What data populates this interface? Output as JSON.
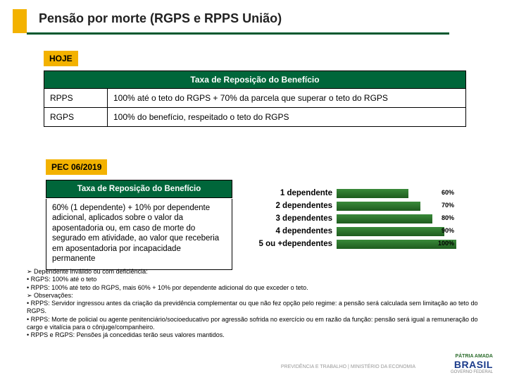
{
  "title": "Pensão por morte (RGPS e RPPS União)",
  "colors": {
    "accent_yellow": "#f3b200",
    "header_green": "#00663a",
    "underline_green": "#00582f",
    "bar_gradient_top": "#3a8a3a",
    "bar_gradient_bottom": "#1e5c1e",
    "text": "#222222",
    "background": "#ffffff"
  },
  "tag_hoje": "HOJE",
  "tag_pec": "PEC 06/2019",
  "table1": {
    "header": "Taxa de Reposição do Benefício",
    "rows": [
      {
        "c0": "RPPS",
        "c1": "100% até o teto do RGPS + 70% da parcela que superar o teto do RGPS"
      },
      {
        "c0": "RGPS",
        "c1": "100% do benefício, respeitado o teto do RGPS"
      }
    ]
  },
  "box2": {
    "header": "Taxa de Reposição do Benefício",
    "body": "60% (1 dependente) + 10% por dependente adicional, aplicados sobre o valor da aposentadoria ou, em caso de morte do segurado em atividade, ao valor que receberia em aposentadoria por incapacidade permanente"
  },
  "bars": {
    "max": 100,
    "items": [
      {
        "label": "1 dependente",
        "value": 60,
        "text": "60%"
      },
      {
        "label": "2 dependentes",
        "value": 70,
        "text": "70%"
      },
      {
        "label": "3 dependentes",
        "value": 80,
        "text": "80%"
      },
      {
        "label": "4 dependentes",
        "value": 90,
        "text": "90%"
      },
      {
        "label": "5 ou +dependentes",
        "value": 100,
        "text": "100%"
      }
    ]
  },
  "notes": [
    "➢  Dependente inválido ou com deficiência:",
    "• RGPS: 100% até o teto",
    "• RPPS: 100% até teto do RGPS, mais 60% + 10% por dependente adicional do que exceder o teto.",
    "➢  Observações:",
    "• RPPS: Servidor ingressou antes da criação da previdência complementar ou que não fez opção pelo regime: a pensão será calculada sem limitação ao teto do RGPS.",
    "• RPPS: Morte de policial ou agente penitenciário/socioeducativo por agressão sofrida no exercício ou em razão da função: pensão será igual a remuneração do cargo e vitalícia para o cônjuge/companheiro.",
    "• RPPS e RGPS: Pensões já concedidas terão seus valores mantidos."
  ],
  "footer": {
    "left": "PREVIDÊNCIA E TRABALHO | MINISTÉRIO DA ECONOMIA",
    "brand_top": "PÁTRIA AMADA",
    "brand": "BRASIL",
    "brand_sub": "GOVERNO FEDERAL"
  }
}
